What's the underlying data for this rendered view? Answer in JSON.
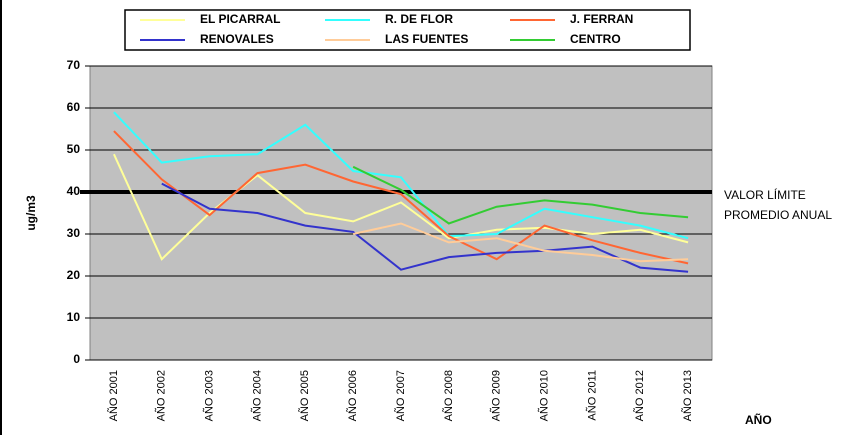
{
  "chart_data": {
    "type": "line",
    "categories": [
      "AÑO 2001",
      "AÑO 2002",
      "AÑO 2003",
      "AÑO 2004",
      "AÑO 2005",
      "AÑO 2006",
      "AÑO 2007",
      "AÑO 2008",
      "AÑO 2009",
      "AÑO 2010",
      "AÑO 2011",
      "AÑO 2012",
      "AÑO 2013"
    ],
    "series": [
      {
        "name": "EL PICARRAL",
        "color": "#ffff99",
        "values": [
          49,
          24,
          35,
          44,
          35,
          33,
          37.5,
          29,
          31,
          31.5,
          30,
          31,
          28
        ]
      },
      {
        "name": "R. DE FLOR",
        "color": "#33ffff",
        "values": [
          59,
          47,
          48.5,
          49,
          56,
          45,
          43.5,
          29.5,
          30,
          36,
          34,
          32,
          29
        ]
      },
      {
        "name": "J. FERRAN",
        "color": "#ff6633",
        "values": [
          54.5,
          43,
          34.5,
          44.5,
          46.5,
          42.5,
          39.5,
          29.5,
          24,
          32,
          28.5,
          25.5,
          23
        ]
      },
      {
        "name": "RENOVALES",
        "color": "#3333cc",
        "values": [
          null,
          42,
          36,
          35,
          32,
          30.5,
          21.5,
          24.5,
          25.5,
          26,
          27,
          22,
          21
        ]
      },
      {
        "name": "LAS FUENTES",
        "color": "#ffcc99",
        "values": [
          null,
          null,
          null,
          null,
          null,
          30,
          32.5,
          28,
          29,
          26,
          25,
          23.5,
          24
        ]
      },
      {
        "name": "CENTRO",
        "color": "#33cc33",
        "values": [
          null,
          null,
          null,
          null,
          null,
          46,
          40.5,
          32.5,
          36.5,
          38,
          37,
          35,
          34
        ]
      }
    ],
    "ylim": [
      0,
      70
    ],
    "yticks": [
      0,
      10,
      20,
      30,
      40,
      50,
      60,
      70
    ],
    "grid": true,
    "ylabel": "ug/m3",
    "xlabel": "AÑO",
    "limit_value": 40,
    "annotation": [
      "VALOR LÍMITE",
      "PROMEDIO ANUAL"
    ]
  }
}
